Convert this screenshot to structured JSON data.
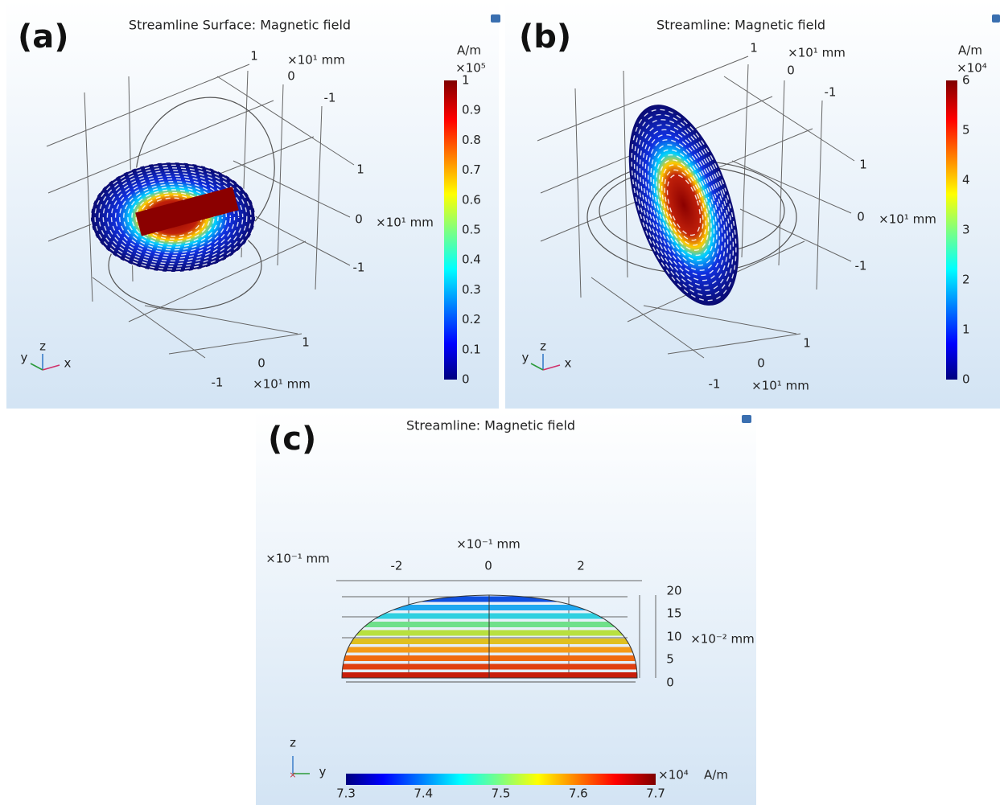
{
  "panels": [
    {
      "label": "(a)",
      "title": "Streamline Surface: Magnetic field",
      "axis_labels": [
        "1",
        "×10¹ mm",
        "0",
        "-1",
        "1",
        "0",
        "×10¹ mm",
        "-1",
        "1",
        "0",
        "-1",
        "×10¹ mm"
      ],
      "triad": [
        "y",
        "z",
        "x"
      ],
      "colorbar": {
        "unit": "A/m",
        "scale": "×10⁵",
        "ticks": [
          "0",
          "0.1",
          "0.2",
          "0.3",
          "0.4",
          "0.5",
          "0.6",
          "0.7",
          "0.8",
          "0.9",
          "1"
        ]
      }
    },
    {
      "label": "(b)",
      "title": "Streamline: Magnetic field",
      "axis_labels": [
        "1",
        "×10¹ mm",
        "0",
        "-1",
        "1",
        "0",
        "×10¹ mm",
        "-1",
        "1",
        "0",
        "-1",
        "×10¹ mm"
      ],
      "triad": [
        "y",
        "z",
        "x"
      ],
      "colorbar": {
        "unit": "A/m",
        "scale": "×10⁴",
        "ticks": [
          "0",
          "1",
          "2",
          "3",
          "4",
          "5",
          "6"
        ]
      }
    },
    {
      "label": "(c)",
      "title": "Streamline: Magnetic field",
      "axis_labels": [
        "×10⁻¹ mm",
        "×10⁻¹ mm",
        "-2",
        "0",
        "2",
        "20",
        "15",
        "10",
        "5",
        "0",
        "×10⁻² mm"
      ],
      "triad": [
        "z",
        "y"
      ],
      "colorbar": {
        "unit": "A/m",
        "scale": "×10⁴",
        "ticks": [
          "7.3",
          "7.4",
          "7.5",
          "7.6",
          "7.7"
        ]
      }
    }
  ]
}
